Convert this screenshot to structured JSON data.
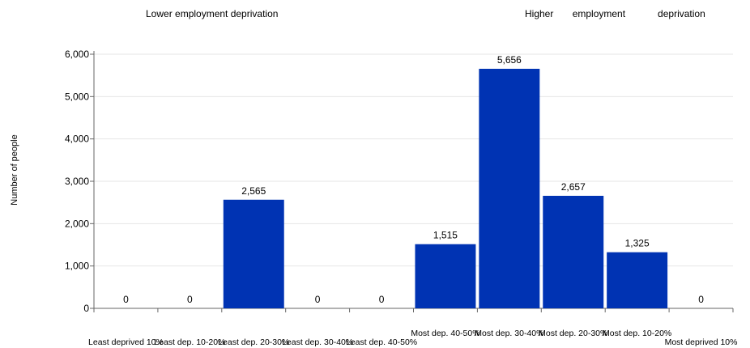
{
  "header": {
    "left_label": "Lower employment deprivation",
    "right_label": "Higher       employment            deprivation"
  },
  "chart_data": {
    "type": "bar",
    "ylabel": "Number of people",
    "xlabel": "",
    "ylim": [
      0,
      6000
    ],
    "yticks": [
      0,
      1000,
      2000,
      3000,
      4000,
      5000,
      6000
    ],
    "ytick_labels": [
      "0",
      "1,000",
      "2,000",
      "3,000",
      "4,000",
      "5,000",
      "6,000"
    ],
    "grid": true,
    "bar_color": "#0033b3",
    "categories": [
      "Least deprived 10%",
      "Least dep. 10-20%",
      "Least dep. 20-30%",
      "Least dep. 30-40%",
      "Least dep. 40-50%",
      "Most dep. 40-50%",
      "Most dep. 30-40%",
      "Most dep. 20-30%",
      "Most dep. 10-20%",
      "Most deprived 10%"
    ],
    "values": [
      0,
      0,
      2565,
      0,
      0,
      1515,
      5656,
      2657,
      1325,
      0
    ],
    "data_labels": [
      "0",
      "0",
      "2,565",
      "0",
      "0",
      "1,515",
      "5,656",
      "2,657",
      "1,325",
      "0"
    ]
  }
}
